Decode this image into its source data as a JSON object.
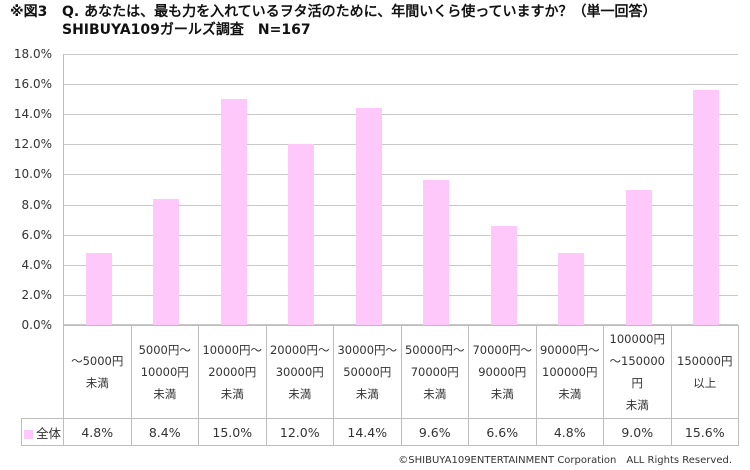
{
  "title": {
    "fig_label": "※図3",
    "question": "Q. あなたは、最も力を入れているヲタ活のために、年間いくら使っていますか？（単一回答）",
    "subtitle": "SHIBUYA109ガールズ調査　N=167"
  },
  "colors": {
    "bar": "#FFC8FA",
    "grid": "#C8C8C8"
  },
  "y_ticks": [
    "18.0%",
    "16.0%",
    "14.0%",
    "12.0%",
    "10.0%",
    "8.0%",
    "6.0%",
    "4.0%",
    "2.0%",
    "0.0%"
  ],
  "table": {
    "legend_label": "全体",
    "categories": [
      [
        "～5000円",
        "未満"
      ],
      [
        "5000円～",
        "10000円",
        "未満"
      ],
      [
        "10000円～",
        "20000円",
        "未満"
      ],
      [
        "20000円～",
        "30000円",
        "未満"
      ],
      [
        "30000円～",
        "50000円",
        "未満"
      ],
      [
        "50000円～",
        "70000円",
        "未満"
      ],
      [
        "70000円～",
        "90000円",
        "未満"
      ],
      [
        "90000円～",
        "100000円",
        "未満"
      ],
      [
        "100000円",
        "～150000",
        "円",
        "未満"
      ],
      [
        "150000円",
        "以上"
      ]
    ],
    "values": [
      "4.8%",
      "8.4%",
      "15.0%",
      "12.0%",
      "14.4%",
      "9.6%",
      "6.6%",
      "4.8%",
      "9.0%",
      "15.6%"
    ]
  },
  "copyright": "©SHIBUYA109ENTERTAINMENT Corporation　ALL Rights Reserved.",
  "chart_data": {
    "type": "bar",
    "title": "Q. あなたは、最も力を入れているヲタ活のために、年間いくら使っていますか？（単一回答）",
    "subtitle": "SHIBUYA109ガールズ調査　N=167",
    "categories": [
      "～5000円未満",
      "5000円～10000円未満",
      "10000円～20000円未満",
      "20000円～30000円未満",
      "30000円～50000円未満",
      "50000円～70000円未満",
      "70000円～90000円未満",
      "90000円～100000円未満",
      "100000円～150000円未満",
      "150000円以上"
    ],
    "series": [
      {
        "name": "全体",
        "values": [
          4.8,
          8.4,
          15.0,
          12.0,
          14.4,
          9.6,
          6.6,
          4.8,
          9.0,
          15.6
        ]
      }
    ],
    "xlabel": "",
    "ylabel": "",
    "ylim": [
      0,
      18
    ],
    "y_tick_step": 2,
    "y_format": "percent",
    "grid": true,
    "legend_position": "data-table"
  }
}
